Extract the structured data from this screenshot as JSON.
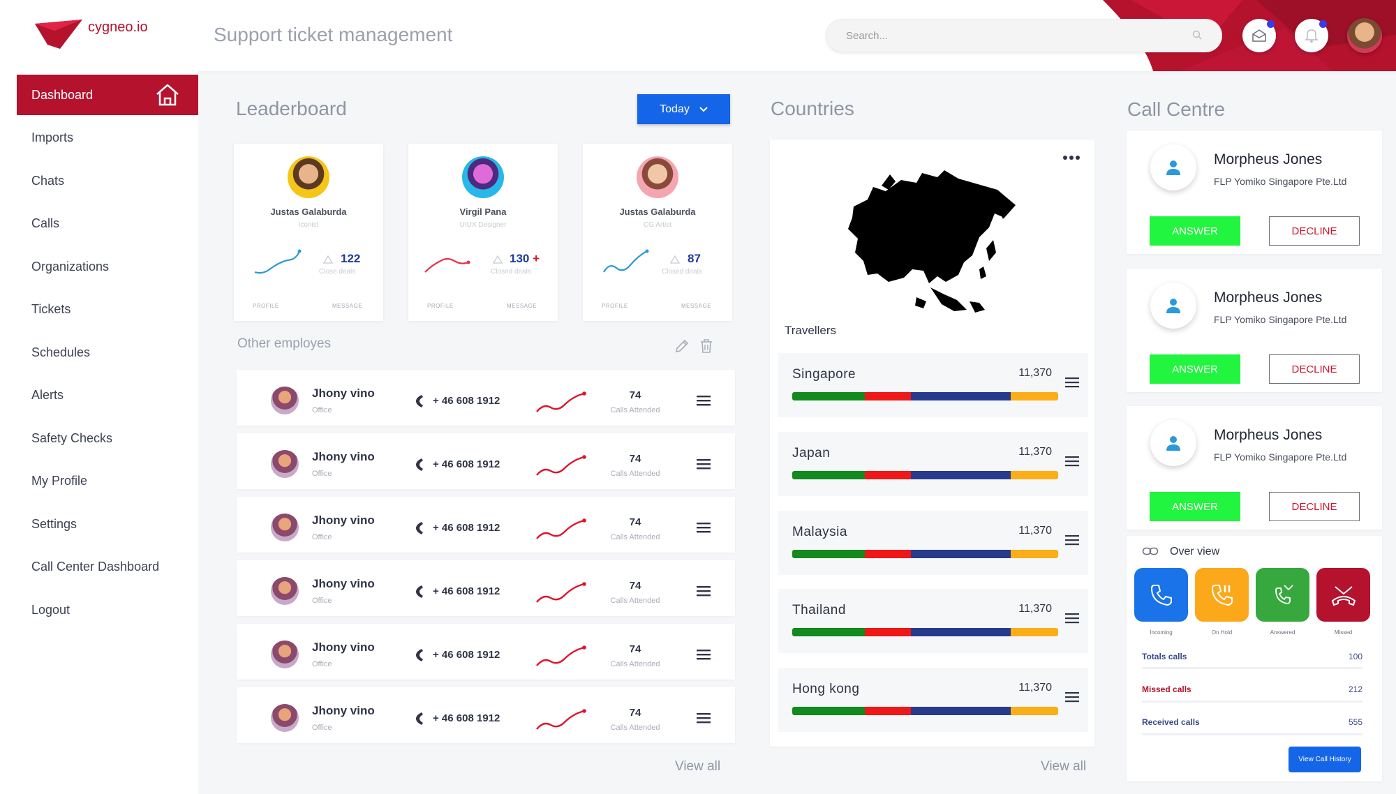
{
  "app": {
    "name": "cygneo.io",
    "page_title": "Support ticket management"
  },
  "search": {
    "placeholder": "Search..."
  },
  "sidebar": {
    "items": [
      {
        "label": "Dashboard"
      },
      {
        "label": "Imports"
      },
      {
        "label": "Chats"
      },
      {
        "label": "Calls"
      },
      {
        "label": "Organizations"
      },
      {
        "label": "Tickets"
      },
      {
        "label": "Schedules"
      },
      {
        "label": "Alerts"
      },
      {
        "label": "Safety Checks"
      },
      {
        "label": "My Profile"
      },
      {
        "label": "Settings"
      },
      {
        "label": "Call Center Dashboard"
      },
      {
        "label": "Logout"
      }
    ]
  },
  "leaderboard": {
    "title": "Leaderboard",
    "filter": "Today",
    "cards": [
      {
        "name": "Justas Galaburda",
        "role": "Iconist",
        "value": "122",
        "plus": "",
        "sub": "Close deals",
        "profile": "PROFILE",
        "message": "MESSAGE"
      },
      {
        "name": "Virgil Pana",
        "role": "UIUX Designer",
        "value": "130",
        "plus": "+",
        "sub": "Closed deals",
        "profile": "PROFILE",
        "message": "MESSAGE"
      },
      {
        "name": "Justas Galaburda",
        "role": "CG Artist",
        "value": "87",
        "plus": "",
        "sub": "Closed deals",
        "profile": "PROFILE",
        "message": "MESSAGE"
      }
    ]
  },
  "employees": {
    "title": "Other employes",
    "view_all": "View all",
    "rows": [
      {
        "name": "Jhony vino",
        "role": "Office",
        "phone": "+ 46 608 1912",
        "calls": "74",
        "calls_label": "Calls Attended"
      },
      {
        "name": "Jhony vino",
        "role": "Office",
        "phone": "+ 46 608 1912",
        "calls": "74",
        "calls_label": "Calls Attended"
      },
      {
        "name": "Jhony vino",
        "role": "Office",
        "phone": "+ 46 608 1912",
        "calls": "74",
        "calls_label": "Calls Attended"
      },
      {
        "name": "Jhony vino",
        "role": "Office",
        "phone": "+ 46 608 1912",
        "calls": "74",
        "calls_label": "Calls Attended"
      },
      {
        "name": "Jhony vino",
        "role": "Office",
        "phone": "+ 46 608 1912",
        "calls": "74",
        "calls_label": "Calls Attended"
      },
      {
        "name": "Jhony vino",
        "role": "Office",
        "phone": "+ 46 608 1912",
        "calls": "74",
        "calls_label": "Calls Attended"
      }
    ]
  },
  "countries": {
    "title": "Countries",
    "map_label": "Travellers",
    "view_all": "View all",
    "bar_colors": [
      "#128a1d",
      "#ee1818",
      "#283a8c",
      "#fbae17"
    ],
    "rows": [
      {
        "name": "Singapore",
        "value": "11,370"
      },
      {
        "name": "Japan",
        "value": "11,370"
      },
      {
        "name": "Malaysia",
        "value": "11,370"
      },
      {
        "name": "Thailand",
        "value": "11,370"
      },
      {
        "name": "Hong kong",
        "value": "11,370"
      }
    ]
  },
  "call_centre": {
    "title": "Call Centre",
    "calls": [
      {
        "name": "Morpheus Jones",
        "org": "FLP Yomiko Singapore Pte.Ltd",
        "answer": "ANSWER",
        "decline": "DECLINE"
      },
      {
        "name": "Morpheus Jones",
        "org": "FLP Yomiko Singapore Pte.Ltd",
        "answer": "ANSWER",
        "decline": "DECLINE"
      },
      {
        "name": "Morpheus Jones",
        "org": "FLP Yomiko Singapore Pte.Ltd",
        "answer": "ANSWER",
        "decline": "DECLINE"
      }
    ],
    "overview": {
      "title": "Over view",
      "tiles": [
        {
          "label": "Incoming",
          "color": "#1a73e8",
          "icon": "phone-incoming-icon"
        },
        {
          "label": "On Hold",
          "color": "#fba81a",
          "icon": "phone-hold-icon"
        },
        {
          "label": "Answered",
          "color": "#37a83d",
          "icon": "phone-answered-icon"
        },
        {
          "label": "Missed",
          "color": "#b5122d",
          "icon": "phone-missed-icon"
        }
      ],
      "stats": [
        {
          "label": "Totals calls",
          "value": "100"
        },
        {
          "label": "Missed calls",
          "value": "212"
        },
        {
          "label": "Received calls",
          "value": "555"
        }
      ],
      "history_button": "View Call History"
    }
  }
}
